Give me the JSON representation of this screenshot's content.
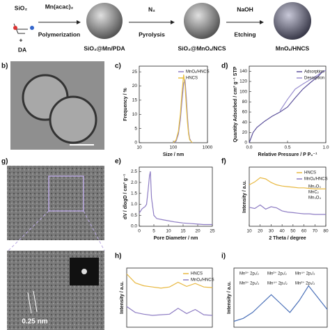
{
  "schematic": {
    "labels": [
      "SiO₂",
      "+",
      "DA",
      "Mn(acac)₂",
      "Polymerization",
      "SiO₂@Mn/PDA",
      "N₂",
      "Pyrolysis",
      "SiO₂@MnOₓ/NCS",
      "NaOH",
      "Etching",
      "MnOₓ/HNCS"
    ]
  },
  "panel_labels": [
    "b)",
    "c)",
    "d)",
    "g)",
    "e)",
    "f)",
    "h)",
    "i)"
  ],
  "images": {
    "scale_label": "0.25 nm"
  },
  "chart_data": [
    {
      "type": "line",
      "xlabel": "Size / nm",
      "ylabel": "Frequency / %",
      "log_x": true,
      "x": [
        100,
        120,
        140,
        160,
        180,
        200,
        220,
        240,
        260,
        280,
        300,
        330,
        360
      ],
      "series": [
        {
          "name": "MnOₓ/HNCS",
          "color": "#8d7cc3",
          "values": [
            0,
            0.5,
            3,
            8,
            15,
            21,
            22,
            16,
            9,
            4,
            1.5,
            0.5,
            0
          ]
        },
        {
          "name": "HNCS",
          "color": "#e8c040",
          "values": [
            0,
            1,
            4,
            10,
            18,
            24,
            20,
            13,
            7,
            3,
            1,
            0.5,
            0
          ]
        }
      ],
      "xlim": [
        10,
        1000
      ],
      "xticks": [
        10,
        100,
        1000
      ],
      "ylim": [
        0,
        27
      ],
      "yticks": [
        0,
        5,
        10,
        15,
        20,
        25
      ]
    },
    {
      "type": "line",
      "xlabel": "Relative Pressure / P P₀⁻¹",
      "ylabel": "Quantity Adsorbed / cm³ g⁻¹ STP",
      "x": [
        0,
        0.05,
        0.1,
        0.2,
        0.3,
        0.4,
        0.5,
        0.6,
        0.7,
        0.8,
        0.9,
        0.95,
        1.0
      ],
      "series": [
        {
          "name": "Adsorption",
          "color": "#5a4f9a",
          "values": [
            0,
            20,
            30,
            42,
            52,
            60,
            70,
            88,
            105,
            118,
            130,
            138,
            142
          ]
        },
        {
          "name": "Desorption",
          "color": "#9a8fd0",
          "values": [
            null,
            null,
            null,
            null,
            null,
            62,
            85,
            105,
            115,
            124,
            133,
            139,
            142
          ]
        }
      ],
      "xlim": [
        0,
        1.0
      ],
      "xticks": [
        {
          "value": 0,
          "label": "0.0"
        },
        {
          "value": 0.5,
          "label": "0.5"
        },
        {
          "value": 1.0,
          "label": "1.0"
        }
      ],
      "ylim": [
        0,
        150
      ],
      "yticks": [
        0,
        20,
        40,
        60,
        80,
        100,
        120,
        140
      ]
    },
    {
      "type": "line",
      "xlabel": "Pore Diameter / nm",
      "ylabel": "dV / dlogD / cm³ g⁻¹",
      "x": [
        0,
        1,
        2,
        2.5,
        3,
        3.5,
        3.8,
        4.2,
        5,
        6,
        8,
        10,
        12,
        15,
        18,
        20,
        22,
        25
      ],
      "values": [
        0.6,
        0.8,
        0.9,
        1.0,
        1.6,
        2.3,
        2.5,
        1.3,
        0.5,
        0.35,
        0.3,
        0.25,
        0.2,
        0.15,
        0.12,
        0.1,
        0.08,
        0.08
      ],
      "color": "#8d7cc3",
      "xlim": [
        0,
        25
      ],
      "xticks": [
        0,
        5,
        10,
        15,
        20,
        25
      ],
      "ylim": [
        0,
        2.7
      ],
      "yticks": [
        {
          "value": 0,
          "label": "0.0"
        },
        0.5,
        {
          "value": 1,
          "label": "1.0"
        },
        1.5,
        {
          "value": 2,
          "label": "2.0"
        },
        2.5
      ]
    },
    {
      "type": "line",
      "xlabel": "2 Theta / degree",
      "ylabel": "Intensity / a.u.",
      "x": [
        10,
        15,
        20,
        25,
        30,
        35,
        40,
        45,
        50,
        55,
        60,
        65,
        70,
        75,
        80
      ],
      "series": [
        {
          "name": "HNCS",
          "color": "#e8b840",
          "values": [
            7,
            7.5,
            8.2,
            8.0,
            7.4,
            7.0,
            6.8,
            6.7,
            6.6,
            6.5,
            6.5,
            6.4,
            6.3,
            6.3,
            6.3
          ]
        },
        {
          "name": "MnOₓ/HNCS",
          "color": "#8d7cc3",
          "values": [
            3.2,
            3.0,
            3.6,
            2.9,
            3.3,
            3.1,
            2.6,
            2.4,
            2.3,
            2.2,
            2.1,
            2.1,
            2.0,
            2.0,
            2.0
          ]
        }
      ],
      "annotations": [
        "Mn₂O₃",
        "MnC₂",
        "Mn₃O₄"
      ],
      "xlim": [
        10,
        80
      ],
      "xticks": [
        10,
        20,
        30,
        40,
        50,
        60,
        70,
        80
      ],
      "ylim": [
        0,
        10
      ]
    },
    {
      "type": "line",
      "ylabel": "Intensity / a.u.",
      "x": [
        0,
        1,
        2,
        3,
        4,
        5,
        6,
        7,
        8,
        9,
        10
      ],
      "series": [
        {
          "name": "HNCS",
          "color": "#e8b840",
          "values": [
            9,
            7.5,
            7,
            6.8,
            6.6,
            6.8,
            7.6,
            6.9,
            7.4,
            6.8,
            6.7
          ]
        },
        {
          "name": "MnOₓ/HNCS",
          "color": "#8d7cc3",
          "values": [
            3.5,
            2.5,
            2.2,
            2.0,
            2.1,
            2.2,
            3.2,
            2.3,
            3.0,
            2.1,
            2.0
          ]
        }
      ],
      "xlim": [
        0,
        10
      ],
      "ylim": [
        0,
        10
      ]
    },
    {
      "type": "line",
      "ylabel": "Intensity / a.u.",
      "x": [
        0,
        1,
        2,
        3,
        4,
        5,
        6,
        7,
        8,
        9,
        10
      ],
      "values": [
        1,
        1.5,
        2.5,
        4,
        5.5,
        4,
        2.5,
        4.5,
        7,
        5,
        3
      ],
      "color": "#4a70b8",
      "annotations": [
        "Mn³⁺ 2p₁/₂",
        "Mn²⁺ 2p₁/₂",
        "Mn⁴⁺ 2p₁/₂",
        "Mn³⁺ 2p₃/₂",
        "Mn⁴⁺ 2p₃/₂",
        "Mn²⁺ 2p₃/₂"
      ],
      "xlim": [
        0,
        10
      ],
      "ylim": [
        0,
        10
      ]
    }
  ]
}
